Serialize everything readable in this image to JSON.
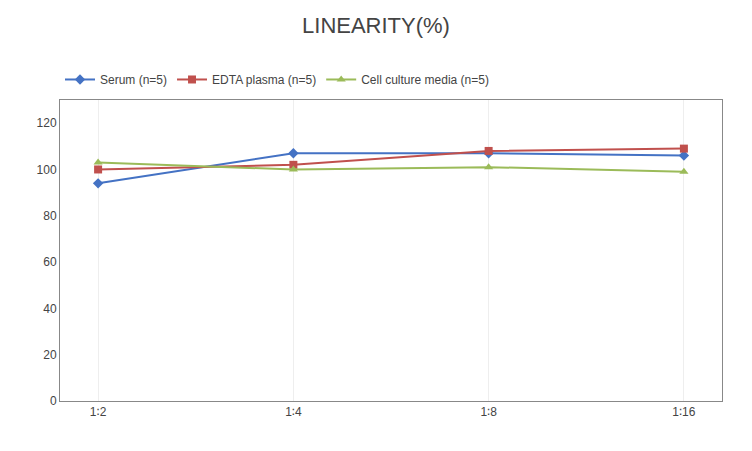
{
  "chart_data": {
    "type": "line",
    "title": "LINEARITY(%)",
    "categories": [
      "1∶2",
      "1∶4",
      "1∶8",
      "1∶16"
    ],
    "series": [
      {
        "name": "Serum (n=5)",
        "color": "#4472C4",
        "marker": "diamond",
        "values": [
          94,
          107,
          107,
          106
        ]
      },
      {
        "name": "EDTA plasma (n=5)",
        "color": "#C0504D",
        "marker": "square",
        "values": [
          100,
          102,
          108,
          109
        ]
      },
      {
        "name": "Cell culture media (n=5)",
        "color": "#9BBB59",
        "marker": "triangle-up",
        "values": [
          103,
          100,
          101,
          99
        ]
      }
    ],
    "ylim": [
      0,
      130
    ],
    "yticks": [
      0,
      20,
      40,
      60,
      80,
      100,
      120
    ],
    "grid": "x",
    "legend": "top"
  }
}
